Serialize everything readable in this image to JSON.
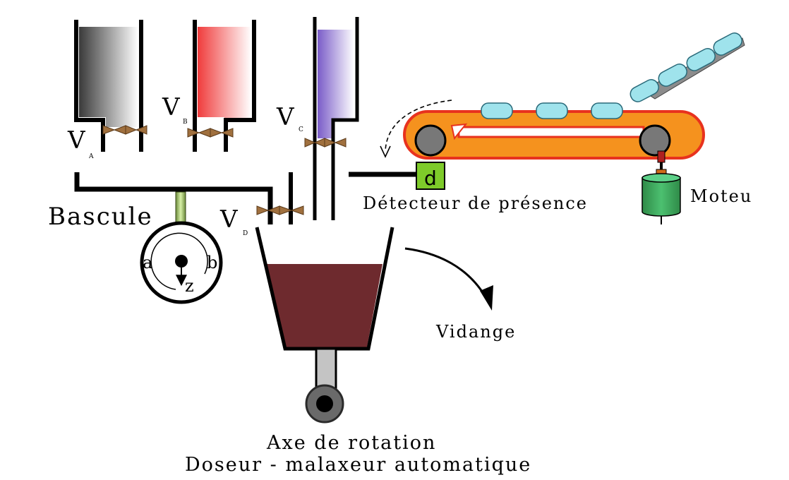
{
  "labels": {
    "valve_a": "V",
    "valve_a_sub": "A",
    "valve_b": "V",
    "valve_b_sub": "B",
    "valve_c": "V",
    "valve_c_sub": "C",
    "valve_d": "V",
    "valve_d_sub": "D",
    "bascule": "Bascule",
    "gauge_a": "a",
    "gauge_b": "b",
    "gauge_z": "z",
    "detector_letter": "d",
    "detector": "Détecteur de présence",
    "motor": "Moteu",
    "drain": "Vidange",
    "axis": "Axe de rotation",
    "title": "Doseur - malaxeur automatique"
  },
  "colors": {
    "tank_a": "#4a4a4a",
    "tank_b": "#f04848",
    "tank_c": "#8a6fd0",
    "valve": "#a0703e",
    "belt": "#f5921e",
    "belt_edge": "#e8321e",
    "parts": "#9fe3ec",
    "motor": "#3aa35a",
    "mixer": "#6e2a2e",
    "detector": "#7ecb2a"
  }
}
